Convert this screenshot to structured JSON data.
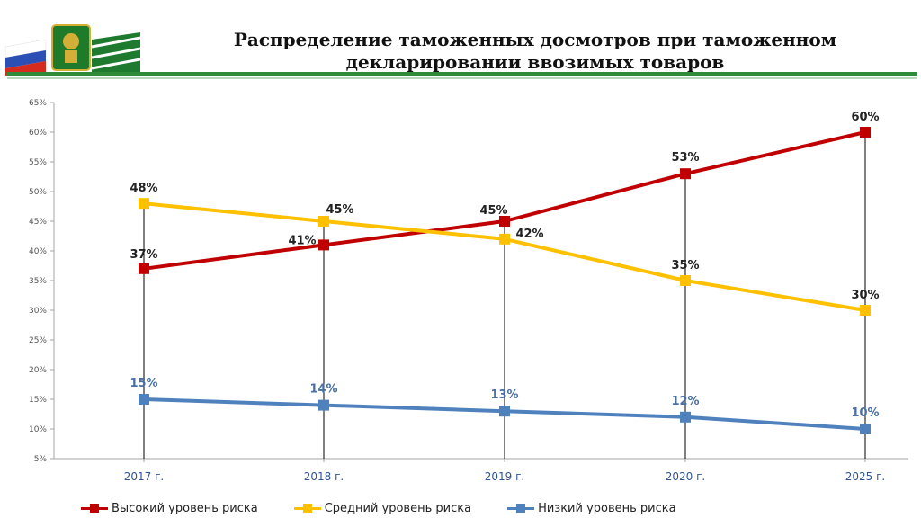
{
  "header": {
    "title_line1": "Распределение таможенных досмотров при таможенном",
    "title_line2": "декларировании ввозимых товаров"
  },
  "chart_data": {
    "type": "line",
    "categories": [
      "2017 г.",
      "2018 г.",
      "2019 г.",
      "2020 г.",
      "2025 г."
    ],
    "ylim": [
      5,
      65
    ],
    "yticks": [
      "5%",
      "10%",
      "15%",
      "20%",
      "25%",
      "30%",
      "35%",
      "40%",
      "45%",
      "50%",
      "55%",
      "60%",
      "65%"
    ],
    "series": [
      {
        "name": "Высокий уровень риска",
        "color": "#c00000",
        "values": [
          37,
          41,
          45,
          53,
          60
        ],
        "labels": [
          "37%",
          "41%",
          "45%",
          "53%",
          "60%"
        ]
      },
      {
        "name": "Средний уровень риска",
        "color": "#ffc000",
        "values": [
          48,
          45,
          42,
          35,
          30
        ],
        "labels": [
          "48%",
          "45%",
          "42%",
          "35%",
          "30%"
        ]
      },
      {
        "name": "Низкий уровень риска",
        "color": "#4f81bd",
        "values": [
          15,
          14,
          13,
          12,
          10
        ],
        "labels": [
          "15%",
          "14%",
          "13%",
          "12%",
          "10%"
        ]
      }
    ],
    "grid": false,
    "drop_lines": true,
    "legend": "bottom"
  }
}
